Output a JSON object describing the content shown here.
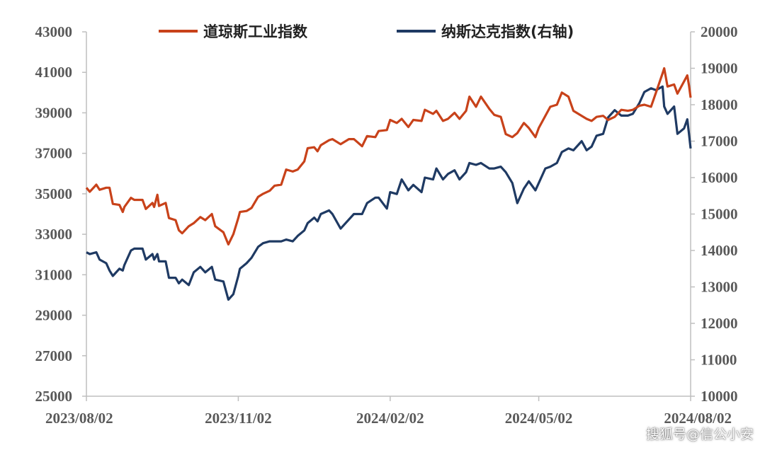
{
  "chart_data": {
    "type": "line",
    "title": "",
    "legend_position": "top-center",
    "grid": false,
    "colors": {
      "dow": "#c8421a",
      "nasdaq": "#1f3a63",
      "axis": "#bfbfbf"
    },
    "x_ticks": [
      "2023/08/02",
      "2023/11/02",
      "2024/02/02",
      "2024/05/02",
      "2024/08/02"
    ],
    "y_left": {
      "ylim": [
        25000,
        43000
      ],
      "ticks": [
        "25000",
        "27000",
        "29000",
        "31000",
        "33000",
        "35000",
        "37000",
        "39000",
        "41000",
        "43000"
      ]
    },
    "y_right": {
      "ylim": [
        10000,
        20000
      ],
      "ticks": [
        "10000",
        "11000",
        "12000",
        "13000",
        "14000",
        "15000",
        "16000",
        "17000",
        "18000",
        "19000",
        "20000"
      ]
    },
    "series": [
      {
        "name": "道琼斯工业指数",
        "axis": "left",
        "points": [
          [
            "2023/08/02",
            35300
          ],
          [
            "2023/08/04",
            35100
          ],
          [
            "2023/08/08",
            35450
          ],
          [
            "2023/08/10",
            35200
          ],
          [
            "2023/08/14",
            35300
          ],
          [
            "2023/08/16",
            35300
          ],
          [
            "2023/08/18",
            34500
          ],
          [
            "2023/08/22",
            34450
          ],
          [
            "2023/08/24",
            34100
          ],
          [
            "2023/08/25",
            34350
          ],
          [
            "2023/08/29",
            34800
          ],
          [
            "2023/08/31",
            34700
          ],
          [
            "2023/09/05",
            34700
          ],
          [
            "2023/09/07",
            34250
          ],
          [
            "2023/09/11",
            34550
          ],
          [
            "2023/09/12",
            34350
          ],
          [
            "2023/09/14",
            34950
          ],
          [
            "2023/09/15",
            34400
          ],
          [
            "2023/09/19",
            34550
          ],
          [
            "2023/09/21",
            33800
          ],
          [
            "2023/09/25",
            33700
          ],
          [
            "2023/09/27",
            33200
          ],
          [
            "2023/09/29",
            33050
          ],
          [
            "2023/10/03",
            33400
          ],
          [
            "2023/10/06",
            33550
          ],
          [
            "2023/10/10",
            33850
          ],
          [
            "2023/10/13",
            33700
          ],
          [
            "2023/10/17",
            34000
          ],
          [
            "2023/10/19",
            33400
          ],
          [
            "2023/10/24",
            33100
          ],
          [
            "2023/10/27",
            32500
          ],
          [
            "2023/10/30",
            33000
          ],
          [
            "2023/11/02",
            33800
          ],
          [
            "2023/11/03",
            34100
          ],
          [
            "2023/11/07",
            34150
          ],
          [
            "2023/11/10",
            34300
          ],
          [
            "2023/11/14",
            34850
          ],
          [
            "2023/11/17",
            35000
          ],
          [
            "2023/11/21",
            35150
          ],
          [
            "2023/11/24",
            35400
          ],
          [
            "2023/11/28",
            35450
          ],
          [
            "2023/12/01",
            36200
          ],
          [
            "2023/12/05",
            36100
          ],
          [
            "2023/12/08",
            36200
          ],
          [
            "2023/12/12",
            36600
          ],
          [
            "2023/12/14",
            37250
          ],
          [
            "2023/12/18",
            37300
          ],
          [
            "2023/12/20",
            37100
          ],
          [
            "2023/12/22",
            37400
          ],
          [
            "2023/12/27",
            37650
          ],
          [
            "2023/12/29",
            37700
          ],
          [
            "2024/01/03",
            37450
          ],
          [
            "2024/01/08",
            37700
          ],
          [
            "2024/01/11",
            37700
          ],
          [
            "2024/01/16",
            37350
          ],
          [
            "2024/01/19",
            37850
          ],
          [
            "2024/01/24",
            37800
          ],
          [
            "2024/01/26",
            38100
          ],
          [
            "2024/01/31",
            38150
          ],
          [
            "2024/02/02",
            38650
          ],
          [
            "2024/02/06",
            38500
          ],
          [
            "2024/02/09",
            38700
          ],
          [
            "2024/02/13",
            38300
          ],
          [
            "2024/02/16",
            38650
          ],
          [
            "2024/02/21",
            38600
          ],
          [
            "2024/02/23",
            39150
          ],
          [
            "2024/02/28",
            38950
          ],
          [
            "2024/03/01",
            39100
          ],
          [
            "2024/03/05",
            38600
          ],
          [
            "2024/03/08",
            38700
          ],
          [
            "2024/03/12",
            39000
          ],
          [
            "2024/03/15",
            38700
          ],
          [
            "2024/03/19",
            39100
          ],
          [
            "2024/03/21",
            39800
          ],
          [
            "2024/03/25",
            39300
          ],
          [
            "2024/03/28",
            39800
          ],
          [
            "2024/04/02",
            39200
          ],
          [
            "2024/04/05",
            38900
          ],
          [
            "2024/04/09",
            38800
          ],
          [
            "2024/04/12",
            37950
          ],
          [
            "2024/04/16",
            37800
          ],
          [
            "2024/04/19",
            38000
          ],
          [
            "2024/04/23",
            38500
          ],
          [
            "2024/04/26",
            38250
          ],
          [
            "2024/04/30",
            37800
          ],
          [
            "2024/05/02",
            38250
          ],
          [
            "2024/05/06",
            38850
          ],
          [
            "2024/05/09",
            39300
          ],
          [
            "2024/05/13",
            39400
          ],
          [
            "2024/05/16",
            40000
          ],
          [
            "2024/05/20",
            39800
          ],
          [
            "2024/05/23",
            39100
          ],
          [
            "2024/05/28",
            38850
          ],
          [
            "2024/05/31",
            38700
          ],
          [
            "2024/06/03",
            38600
          ],
          [
            "2024/06/06",
            38800
          ],
          [
            "2024/06/10",
            38850
          ],
          [
            "2024/06/13",
            38650
          ],
          [
            "2024/06/17",
            38800
          ],
          [
            "2024/06/21",
            39150
          ],
          [
            "2024/06/25",
            39100
          ],
          [
            "2024/06/28",
            39150
          ],
          [
            "2024/07/02",
            39350
          ],
          [
            "2024/07/05",
            39400
          ],
          [
            "2024/07/09",
            39300
          ],
          [
            "2024/07/12",
            40000
          ],
          [
            "2024/07/16",
            40950
          ],
          [
            "2024/07/17",
            41200
          ],
          [
            "2024/07/19",
            40300
          ],
          [
            "2024/07/23",
            40400
          ],
          [
            "2024/07/25",
            39950
          ],
          [
            "2024/07/29",
            40550
          ],
          [
            "2024/07/31",
            40850
          ],
          [
            "2024/08/01",
            40350
          ],
          [
            "2024/08/02",
            39750
          ]
        ]
      },
      {
        "name": "纳斯达克指数(右轴)",
        "axis": "right",
        "points": [
          [
            "2023/08/02",
            13950
          ],
          [
            "2023/08/04",
            13900
          ],
          [
            "2023/08/08",
            13950
          ],
          [
            "2023/08/10",
            13750
          ],
          [
            "2023/08/14",
            13650
          ],
          [
            "2023/08/16",
            13450
          ],
          [
            "2023/08/18",
            13300
          ],
          [
            "2023/08/22",
            13500
          ],
          [
            "2023/08/24",
            13450
          ],
          [
            "2023/08/25",
            13600
          ],
          [
            "2023/08/29",
            14000
          ],
          [
            "2023/08/31",
            14050
          ],
          [
            "2023/09/05",
            14050
          ],
          [
            "2023/09/07",
            13750
          ],
          [
            "2023/09/11",
            13900
          ],
          [
            "2023/09/12",
            13750
          ],
          [
            "2023/09/14",
            13900
          ],
          [
            "2023/09/15",
            13700
          ],
          [
            "2023/09/19",
            13700
          ],
          [
            "2023/09/21",
            13250
          ],
          [
            "2023/09/25",
            13250
          ],
          [
            "2023/09/27",
            13100
          ],
          [
            "2023/09/29",
            13200
          ],
          [
            "2023/10/03",
            13050
          ],
          [
            "2023/10/06",
            13400
          ],
          [
            "2023/10/10",
            13550
          ],
          [
            "2023/10/13",
            13400
          ],
          [
            "2023/10/17",
            13550
          ],
          [
            "2023/10/19",
            13200
          ],
          [
            "2023/10/24",
            13150
          ],
          [
            "2023/10/27",
            12650
          ],
          [
            "2023/10/30",
            12800
          ],
          [
            "2023/11/02",
            13300
          ],
          [
            "2023/11/03",
            13500
          ],
          [
            "2023/11/07",
            13650
          ],
          [
            "2023/11/10",
            13800
          ],
          [
            "2023/11/14",
            14100
          ],
          [
            "2023/11/17",
            14200
          ],
          [
            "2023/11/21",
            14250
          ],
          [
            "2023/11/24",
            14250
          ],
          [
            "2023/11/28",
            14250
          ],
          [
            "2023/12/01",
            14300
          ],
          [
            "2023/12/05",
            14250
          ],
          [
            "2023/12/08",
            14400
          ],
          [
            "2023/12/12",
            14550
          ],
          [
            "2023/12/14",
            14750
          ],
          [
            "2023/12/18",
            14900
          ],
          [
            "2023/12/20",
            14800
          ],
          [
            "2023/12/22",
            15000
          ],
          [
            "2023/12/27",
            15100
          ],
          [
            "2023/12/29",
            15000
          ],
          [
            "2024/01/03",
            14600
          ],
          [
            "2024/01/08",
            14850
          ],
          [
            "2024/01/11",
            15000
          ],
          [
            "2024/01/16",
            15000
          ],
          [
            "2024/01/19",
            15300
          ],
          [
            "2024/01/24",
            15450
          ],
          [
            "2024/01/26",
            15450
          ],
          [
            "2024/01/31",
            15150
          ],
          [
            "2024/02/02",
            15600
          ],
          [
            "2024/02/06",
            15550
          ],
          [
            "2024/02/09",
            15950
          ],
          [
            "2024/02/13",
            15650
          ],
          [
            "2024/02/16",
            15800
          ],
          [
            "2024/02/21",
            15600
          ],
          [
            "2024/02/23",
            16000
          ],
          [
            "2024/02/28",
            15950
          ],
          [
            "2024/03/01",
            16250
          ],
          [
            "2024/03/05",
            15950
          ],
          [
            "2024/03/08",
            16100
          ],
          [
            "2024/03/12",
            16200
          ],
          [
            "2024/03/15",
            15950
          ],
          [
            "2024/03/19",
            16150
          ],
          [
            "2024/03/21",
            16400
          ],
          [
            "2024/03/25",
            16350
          ],
          [
            "2024/03/28",
            16400
          ],
          [
            "2024/04/02",
            16250
          ],
          [
            "2024/04/05",
            16250
          ],
          [
            "2024/04/09",
            16300
          ],
          [
            "2024/04/12",
            16150
          ],
          [
            "2024/04/16",
            15850
          ],
          [
            "2024/04/19",
            15300
          ],
          [
            "2024/04/23",
            15700
          ],
          [
            "2024/04/26",
            15900
          ],
          [
            "2024/04/30",
            15650
          ],
          [
            "2024/05/02",
            15850
          ],
          [
            "2024/05/06",
            16250
          ],
          [
            "2024/05/09",
            16300
          ],
          [
            "2024/05/13",
            16400
          ],
          [
            "2024/05/16",
            16700
          ],
          [
            "2024/05/20",
            16800
          ],
          [
            "2024/05/23",
            16750
          ],
          [
            "2024/05/28",
            17000
          ],
          [
            "2024/05/31",
            16750
          ],
          [
            "2024/06/03",
            16850
          ],
          [
            "2024/06/06",
            17150
          ],
          [
            "2024/06/10",
            17200
          ],
          [
            "2024/06/13",
            17650
          ],
          [
            "2024/06/17",
            17850
          ],
          [
            "2024/06/21",
            17700
          ],
          [
            "2024/06/25",
            17700
          ],
          [
            "2024/06/28",
            17750
          ],
          [
            "2024/07/02",
            18050
          ],
          [
            "2024/07/05",
            18350
          ],
          [
            "2024/07/09",
            18450
          ],
          [
            "2024/07/12",
            18400
          ],
          [
            "2024/07/16",
            18500
          ],
          [
            "2024/07/17",
            17950
          ],
          [
            "2024/07/19",
            17750
          ],
          [
            "2024/07/23",
            17950
          ],
          [
            "2024/07/25",
            17200
          ],
          [
            "2024/07/29",
            17350
          ],
          [
            "2024/07/31",
            17600
          ],
          [
            "2024/08/01",
            17200
          ],
          [
            "2024/08/02",
            16800
          ]
        ]
      }
    ]
  },
  "watermark": "搜狐号@信公小安"
}
